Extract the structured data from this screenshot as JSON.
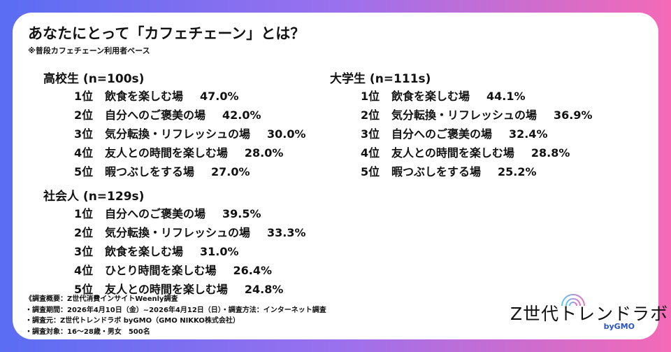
{
  "title": "あなたにとって「カフェチェーン」とは？",
  "subtitle": "※普段カフェチェーン利用者ベース",
  "sections": [
    {
      "header": "高校生 (n=100s)",
      "items": [
        {
          "rank": "1位",
          "label": "飲食を楽しむ場",
          "pct": "47.0%"
        },
        {
          "rank": "2位",
          "label": "自分へのご褒美の場",
          "pct": "42.0%"
        },
        {
          "rank": "3位",
          "label": "気分転換・リフレッシュの場",
          "pct": "30.0%"
        },
        {
          "rank": "4位",
          "label": "友人との時間を楽しむ場",
          "pct": "28.0%"
        },
        {
          "rank": "5位",
          "label": "暇つぶしをする場",
          "pct": "27.0%"
        }
      ]
    },
    {
      "header": "社会人 (n=129s)",
      "items": [
        {
          "rank": "1位",
          "label": "自分へのご褒美の場",
          "pct": "39.5%"
        },
        {
          "rank": "2位",
          "label": "気分転換・リフレッシュの場",
          "pct": "33.3%"
        },
        {
          "rank": "3位",
          "label": "飲食を楽しむ場",
          "pct": "31.0%"
        },
        {
          "rank": "4位",
          "label": "ひとり時間を楽しむ場",
          "pct": "26.4%"
        },
        {
          "rank": "5位",
          "label": "友人との時間を楽しむ場",
          "pct": "24.8%"
        }
      ]
    },
    {
      "header": "大学生 (n=111s)",
      "items": [
        {
          "rank": "1位",
          "label": "飲食を楽しむ場",
          "pct": "44.1%"
        },
        {
          "rank": "2位",
          "label": "気分転換・リフレッシュの場",
          "pct": "36.9%"
        },
        {
          "rank": "3位",
          "label": "自分へのご褒美の場",
          "pct": "32.4%"
        },
        {
          "rank": "4位",
          "label": "友人との時間を楽しむ場",
          "pct": "28.8%"
        },
        {
          "rank": "5位",
          "label": "暇つぶしをする場",
          "pct": "25.2%"
        }
      ]
    }
  ],
  "notes": [
    "《調査概要：Z世代消費インサイトWeenly調査",
    "・調査期間：2026年4月10日（金）~2026年4月12日（日）・調査方法：インターネット調査",
    "・調査元：Z世代トレンドラボ byGMO（GMO NIKKO株式会社）",
    "・調査対象：16～28歳・男女　500名"
  ],
  "logo": {
    "text": "Z世代トレンドラボ",
    "by": "byGMO"
  }
}
